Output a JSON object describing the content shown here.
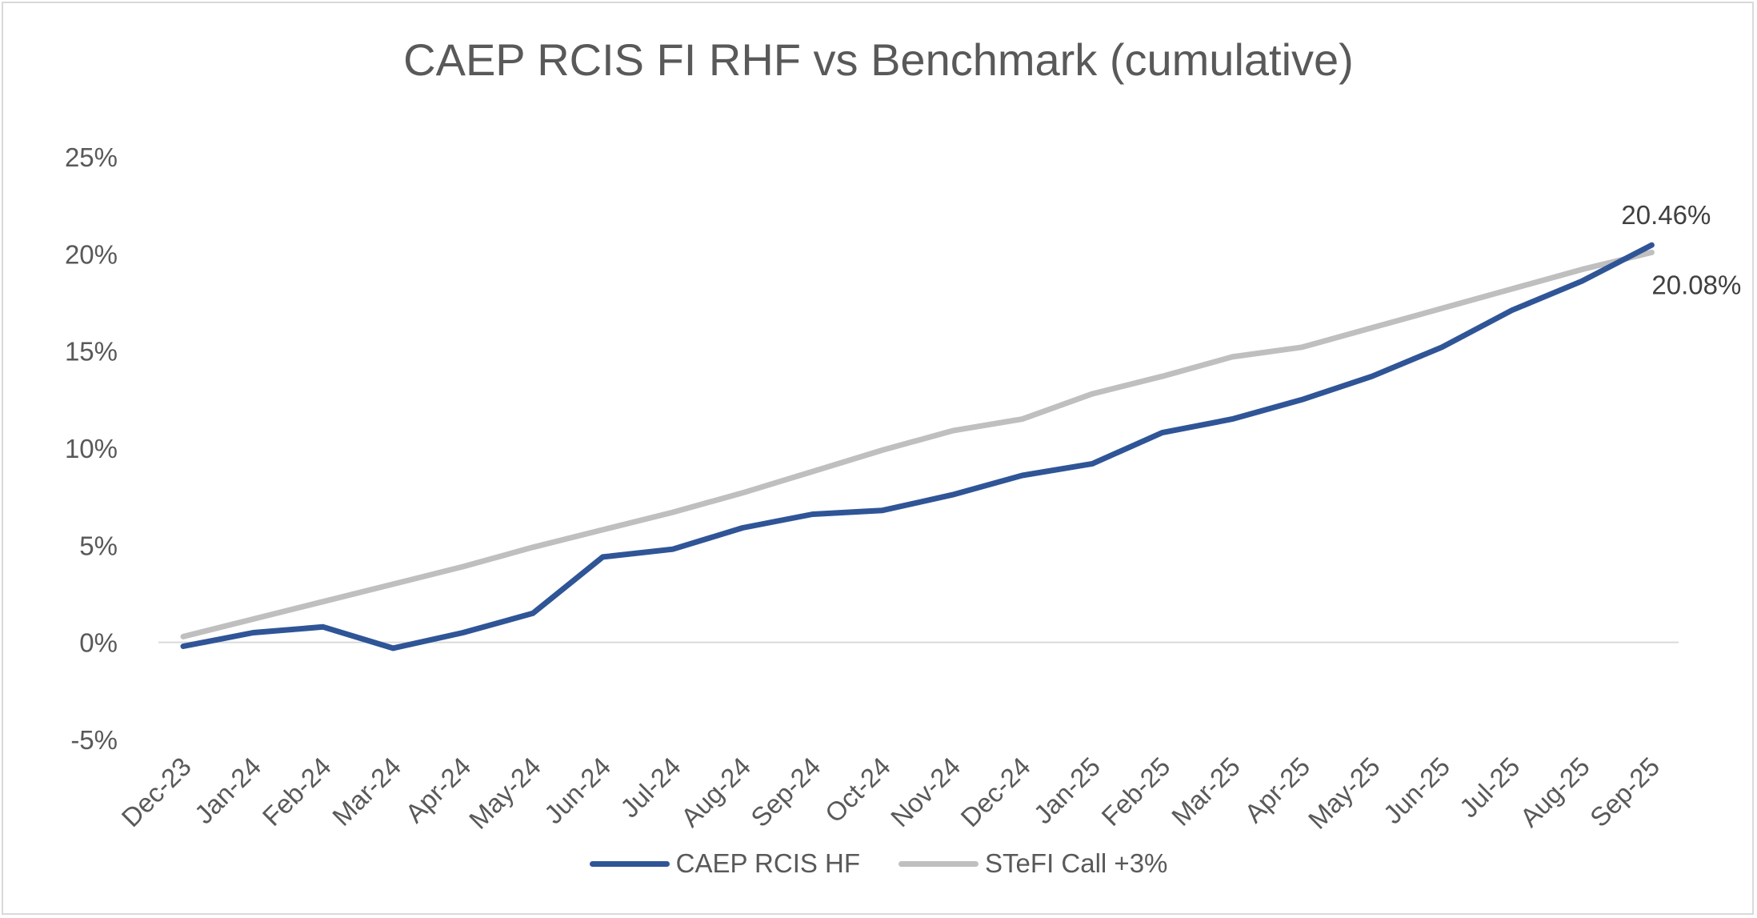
{
  "chart_data": {
    "type": "line",
    "title": "CAEP RCIS FI RHF vs Benchmark (cumulative)",
    "xlabel": "",
    "ylabel": "",
    "ylim": [
      -5,
      25
    ],
    "yticks": [
      -5,
      0,
      5,
      10,
      15,
      20,
      25
    ],
    "ytick_labels": [
      "-5%",
      "0%",
      "5%",
      "10%",
      "15%",
      "20%",
      "25%"
    ],
    "grid": false,
    "legend_position": "bottom",
    "categories": [
      "Dec-23",
      "Jan-24",
      "Feb-24",
      "Mar-24",
      "Apr-24",
      "May-24",
      "Jun-24",
      "Jul-24",
      "Aug-24",
      "Sep-24",
      "Oct-24",
      "Nov-24",
      "Dec-24",
      "Jan-25",
      "Feb-25",
      "Mar-25",
      "Apr-25",
      "May-25",
      "Jun-25",
      "Jul-25",
      "Aug-25",
      "Sep-25"
    ],
    "series": [
      {
        "name": "CAEP RCIS HF",
        "color": "#2f5597",
        "values": [
          -0.2,
          0.5,
          0.8,
          -0.3,
          0.5,
          1.5,
          4.4,
          4.8,
          5.9,
          6.6,
          6.8,
          7.6,
          8.6,
          9.2,
          10.8,
          11.5,
          12.5,
          13.7,
          15.2,
          17.1,
          18.6,
          20.46
        ]
      },
      {
        "name": "STeFI Call +3%",
        "color": "#bfbfbf",
        "values": [
          0.3,
          1.2,
          2.1,
          3.0,
          3.9,
          4.9,
          5.8,
          6.7,
          7.7,
          8.8,
          9.9,
          10.9,
          11.5,
          12.8,
          13.7,
          14.7,
          15.2,
          16.2,
          17.2,
          18.2,
          19.2,
          20.08
        ]
      }
    ],
    "data_labels": [
      {
        "series": "CAEP RCIS HF",
        "category": "Sep-25",
        "text": "20.46%"
      },
      {
        "series": "STeFI Call +3%",
        "category": "Sep-25",
        "text": "20.08%"
      }
    ]
  }
}
